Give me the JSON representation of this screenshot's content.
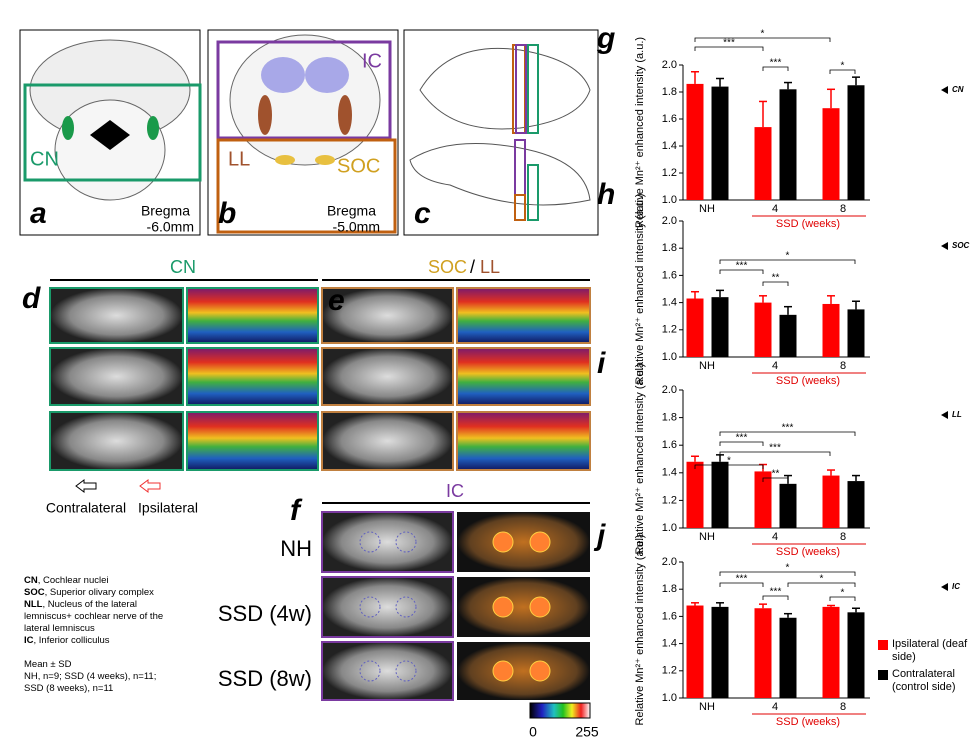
{
  "figure": {
    "letters": {
      "a": "a",
      "b": "b",
      "c": "c",
      "d": "d",
      "e": "e",
      "f": "f",
      "g": "g",
      "h": "h",
      "i": "i",
      "j": "j"
    },
    "a_label": "CN",
    "a_bregma": "Bregma",
    "a_pos": "-6.0mm",
    "b_ic": "IC",
    "b_ll": "LL",
    "b_soc": "SOC",
    "b_bregma": "Bregma",
    "b_pos": "-5.0mm",
    "d_title": "CN",
    "e_title_soc": "SOC",
    "e_sep": "/",
    "e_title_ll": "LL",
    "contra": "Contralateral",
    "ipsi": "Ipsilateral",
    "f_title": "IC",
    "row_nh": "NH",
    "row_4w": "SSD (4w)",
    "row_8w": "SSD (8w)",
    "cbar_min": "0",
    "cbar_max": "255",
    "notes": [
      {
        "abbr": "CN",
        "text": ", Cochlear nuclei"
      },
      {
        "abbr": "SOC",
        "text": ", Superior olivary complex"
      },
      {
        "abbr": "NLL",
        "text": ", Nucleus of the lateral lemniscus+ cochlear nerve of the lateral lemniscus"
      },
      {
        "abbr": "IC",
        "text": ", Inferior colliculus"
      }
    ],
    "stats": [
      "Mean ± SD",
      "NH, n=9; SSD (4 weeks), n=11;",
      "SSD (8 weeks), n=11"
    ]
  },
  "chart_data": [
    {
      "type": "bar",
      "region": "CN",
      "ylabel": "Relative Mn²⁺ enhanced intensity (a.u.)",
      "xgroup_label": "SSD (weeks)",
      "categories": [
        "NH",
        "4",
        "8"
      ],
      "series": [
        {
          "name": "Ipsilateral (deaf side)",
          "color": "#ff0000",
          "values": [
            1.86,
            1.54,
            1.68
          ],
          "errors": [
            0.09,
            0.19,
            0.14
          ]
        },
        {
          "name": "Contralateral (control side)",
          "color": "#000000",
          "values": [
            1.84,
            1.82,
            1.85
          ],
          "errors": [
            0.06,
            0.05,
            0.06
          ]
        }
      ],
      "ylim": [
        1.0,
        2.0
      ],
      "yticks": [
        {
          "value": 1.0,
          "label": "1.0"
        },
        1.2,
        1.4,
        1.6,
        1.8,
        {
          "value": 2.0,
          "label": "2.0"
        }
      ],
      "annotations": [
        "*",
        "***",
        "***",
        "*"
      ]
    },
    {
      "type": "bar",
      "region": "SOC",
      "ylabel": "Relative Mn²⁺ enhanced intensity (a.u.)",
      "xgroup_label": "SSD (weeks)",
      "categories": [
        "NH",
        "4",
        "8"
      ],
      "series": [
        {
          "name": "Ipsilateral (deaf side)",
          "color": "#ff0000",
          "values": [
            1.43,
            1.4,
            1.39
          ],
          "errors": [
            0.05,
            0.05,
            0.06
          ]
        },
        {
          "name": "Contralateral (control side)",
          "color": "#000000",
          "values": [
            1.44,
            1.31,
            1.35
          ],
          "errors": [
            0.05,
            0.06,
            0.06
          ]
        }
      ],
      "ylim": [
        1.0,
        2.0
      ],
      "yticks": [
        {
          "value": 1.0,
          "label": "1.0"
        },
        1.2,
        1.4,
        1.6,
        1.8,
        {
          "value": 2.0,
          "label": "2.0"
        }
      ],
      "annotations": [
        "*",
        "***",
        "**"
      ]
    },
    {
      "type": "bar",
      "region": "LL",
      "ylabel": "Relative Mn²⁺ enhanced intensity (a.u.)",
      "xgroup_label": "SSD (weeks)",
      "categories": [
        "NH",
        "4",
        "8"
      ],
      "series": [
        {
          "name": "Ipsilateral (deaf side)",
          "color": "#ff0000",
          "values": [
            1.48,
            1.41,
            1.38
          ],
          "errors": [
            0.04,
            0.05,
            0.04
          ]
        },
        {
          "name": "Contralateral (control side)",
          "color": "#000000",
          "values": [
            1.48,
            1.32,
            1.34
          ],
          "errors": [
            0.05,
            0.06,
            0.04
          ]
        }
      ],
      "ylim": [
        1.0,
        2.0
      ],
      "yticks": [
        {
          "value": 1.0,
          "label": "1.0"
        },
        1.2,
        1.4,
        1.6,
        1.8,
        {
          "value": 2.0,
          "label": "2.0"
        }
      ],
      "annotations": [
        "***",
        "***",
        "***",
        "*",
        "**"
      ]
    },
    {
      "type": "bar",
      "region": "IC",
      "ylabel": "Relative Mn²⁺ enhanced intensity (a.u.)",
      "xgroup_label": "SSD (weeks)",
      "categories": [
        "NH",
        "4",
        "8"
      ],
      "series": [
        {
          "name": "Ipsilateral (deaf side)",
          "color": "#ff0000",
          "values": [
            1.68,
            1.66,
            1.67
          ],
          "errors": [
            0.02,
            0.03,
            0.01
          ]
        },
        {
          "name": "Contralateral (control side)",
          "color": "#000000",
          "values": [
            1.67,
            1.59,
            1.63
          ],
          "errors": [
            0.03,
            0.03,
            0.03
          ]
        }
      ],
      "ylim": [
        1.0,
        2.0
      ],
      "yticks": [
        {
          "value": 1.0,
          "label": "1.0"
        },
        1.2,
        1.4,
        1.6,
        1.8,
        {
          "value": 2.0,
          "label": "2.0"
        }
      ],
      "annotations": [
        "*",
        "***",
        "*",
        "***",
        "*"
      ],
      "legend": "bottom-right"
    }
  ]
}
